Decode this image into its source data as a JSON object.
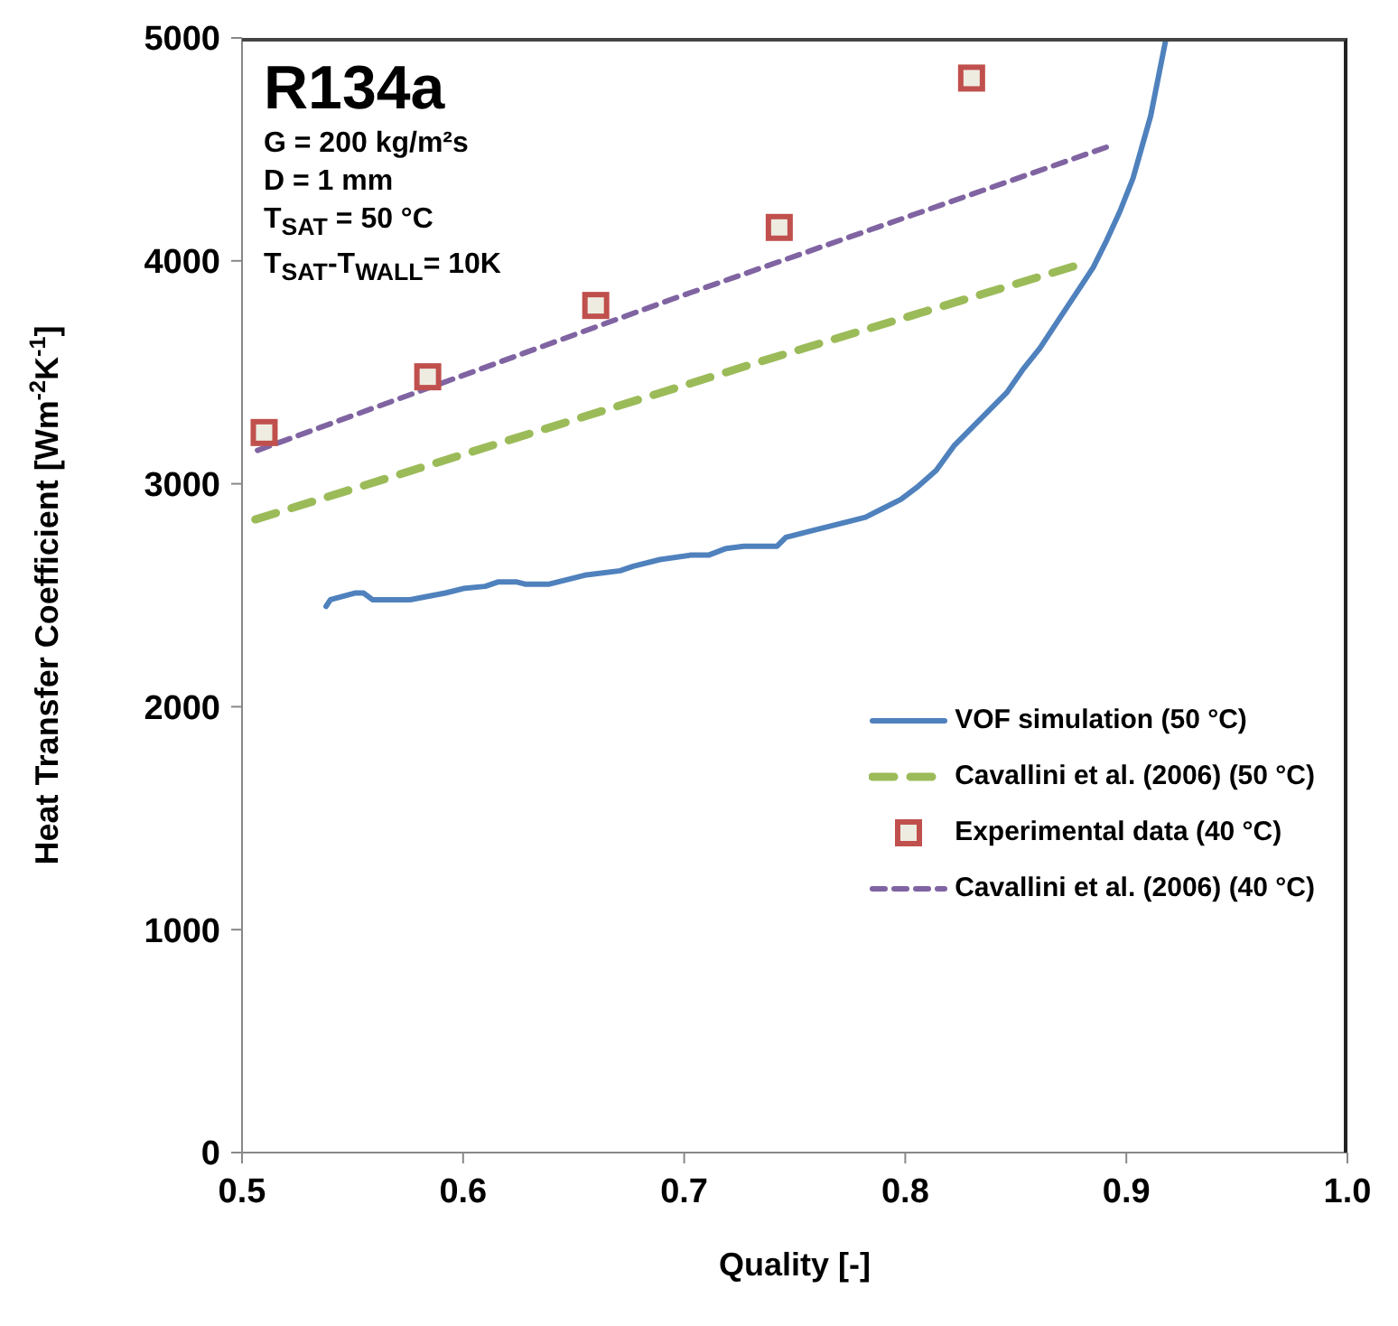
{
  "chart_data": {
    "type": "line",
    "xlabel": "Quality [-]",
    "ylabel": "Heat Transfer Coefficient [Wm$^{-2}$K$^{-1}$]",
    "xlim": [
      0.5,
      1.0
    ],
    "xticks": [
      {
        "value": 0.5,
        "label": "0.5"
      },
      {
        "value": 0.6,
        "label": "0.6"
      },
      {
        "value": 0.7,
        "label": "0.7"
      },
      {
        "value": 0.8,
        "label": "0.8"
      },
      {
        "value": 0.9,
        "label": "0.9"
      },
      {
        "value": 1.0,
        "label": "1.0"
      }
    ],
    "ylim": [
      0,
      5000
    ],
    "yticks": [
      0,
      1000,
      2000,
      3000,
      4000,
      5000
    ],
    "grid": false,
    "legend": "bottom right",
    "annotations": [
      "R134a",
      "G = 200 kg/m²s",
      "D = 1 mm",
      "T$_{SAT}$ = 50 °C",
      "T$_{SAT}$-T$_{WALL}$= 10K"
    ],
    "series": [
      {
        "name": "VOF simulation (50 °C)",
        "color": "#4f81bd",
        "line_style": "solid",
        "marker": "none",
        "x": [
          0.538,
          0.54,
          0.551,
          0.555,
          0.559,
          0.568,
          0.576,
          0.592,
          0.6,
          0.61,
          0.616,
          0.624,
          0.628,
          0.639,
          0.655,
          0.671,
          0.677,
          0.689,
          0.703,
          0.711,
          0.719,
          0.727,
          0.733,
          0.742,
          0.746,
          0.758,
          0.774,
          0.782,
          0.79,
          0.798,
          0.806,
          0.814,
          0.822,
          0.83,
          0.838,
          0.846,
          0.853,
          0.861,
          0.869,
          0.877,
          0.885,
          0.891,
          0.897,
          0.903,
          0.907,
          0.911,
          0.915,
          0.918
        ],
        "values": [
          2450,
          2480,
          2510,
          2510,
          2480,
          2480,
          2480,
          2510,
          2530,
          2540,
          2560,
          2560,
          2550,
          2550,
          2590,
          2610,
          2630,
          2660,
          2680,
          2680,
          2710,
          2720,
          2720,
          2720,
          2760,
          2790,
          2830,
          2850,
          2890,
          2930,
          2990,
          3060,
          3170,
          3250,
          3330,
          3410,
          3510,
          3610,
          3730,
          3850,
          3970,
          4090,
          4220,
          4370,
          4510,
          4650,
          4850,
          5000
        ]
      },
      {
        "name": "Cavallini et al. (2006) (50 °C)",
        "color": "#9bbb59",
        "line_style": "dashed",
        "marker": "none",
        "x": [
          0.506,
          0.735,
          0.881
        ],
        "values": [
          2840,
          3550,
          3990
        ]
      },
      {
        "name": "Experimental data (40 °C)",
        "type": "scatter",
        "color": "#c0504d",
        "marker": "square",
        "x": [
          0.51,
          0.584,
          0.66,
          0.743,
          0.83
        ],
        "values": [
          3230,
          3480,
          3800,
          4150,
          4820
        ]
      },
      {
        "name": "Cavallini et al. (2006) (40 °C)",
        "color": "#8064a2",
        "line_style": "dashed",
        "marker": "none",
        "x": [
          0.507,
          0.695,
          0.891
        ],
        "values": [
          3150,
          3830,
          4510
        ]
      }
    ]
  }
}
